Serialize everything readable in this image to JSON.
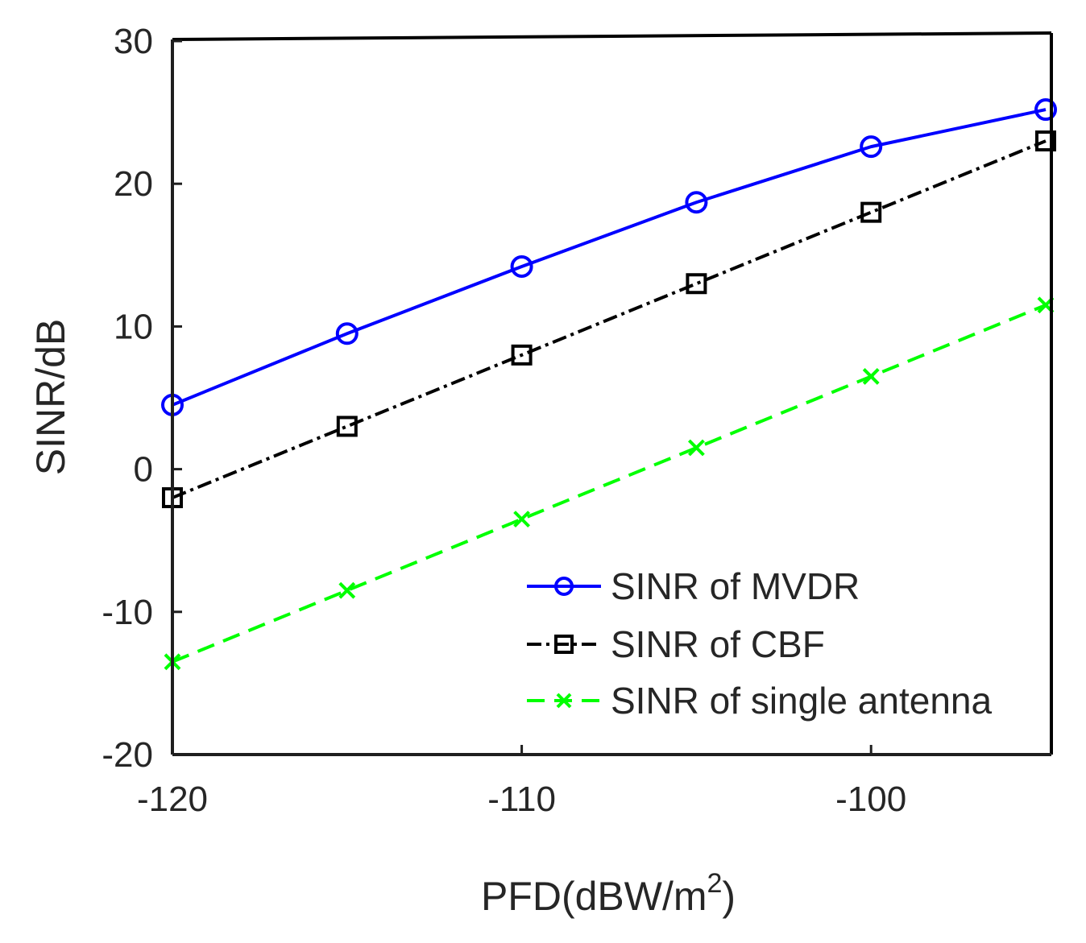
{
  "chart_data": {
    "type": "line",
    "title": "",
    "xlabel": "PFD(dBW/m",
    "xlabel_superscript": "2",
    "xlabel_suffix": ")",
    "ylabel": "SINR/dB",
    "xlim": [
      -120,
      -95
    ],
    "ylim": [
      -20,
      30
    ],
    "xticks": [
      -120,
      -110,
      -100
    ],
    "xtick_labels": [
      "-120",
      "-110",
      "-100"
    ],
    "yticks": [
      -20,
      -10,
      0,
      10,
      20,
      30
    ],
    "ytick_labels": [
      "-20",
      "-10",
      "0",
      "10",
      "20",
      "30"
    ],
    "grid": false,
    "legend_position": "bottom-right",
    "x": [
      -120,
      -115,
      -110,
      -105,
      -100,
      -95
    ],
    "series": [
      {
        "name": "SINR of MVDR",
        "values": [
          4.5,
          9.5,
          14.2,
          18.7,
          22.6,
          25.2
        ],
        "color": "#0000ff",
        "line_style": "solid",
        "marker": "circle"
      },
      {
        "name": "SINR of CBF",
        "values": [
          -2.0,
          3.0,
          8.0,
          13.0,
          18.0,
          23.0
        ],
        "color": "#000000",
        "line_style": "dashdot",
        "marker": "square"
      },
      {
        "name": "SINR of single antenna",
        "values": [
          -13.5,
          -8.5,
          -3.5,
          1.5,
          6.5,
          11.5
        ],
        "color": "#00ff00",
        "line_style": "dashed",
        "marker": "x"
      }
    ]
  }
}
